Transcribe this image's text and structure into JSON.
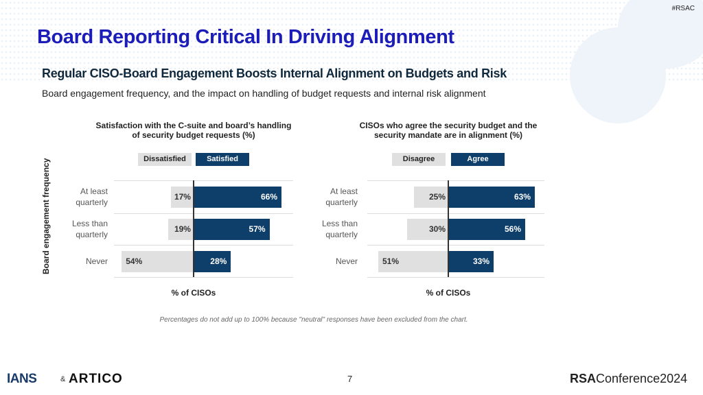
{
  "header": {
    "title": "Board Reporting Critical In Driving Alignment",
    "hashtag": "#RSAC",
    "subtitle": "Regular CISO-Board Engagement Boosts Internal Alignment on Budgets and Risk",
    "description": "Board engagement frequency, and the impact on handling of budget requests and internal risk alignment"
  },
  "colors": {
    "title": "#1c1cb8",
    "negative": "#e0e0e0",
    "positive": "#0e3f6b"
  },
  "chart_data": [
    {
      "type": "bar",
      "orientation": "horizontal-diverging",
      "title_line1": "Satisfaction with the C-suite and board’s handling",
      "title_line2": "of security budget requests (%)",
      "ylabel": "Board engagement frequency",
      "xlabel": "% of CISOs",
      "categories": [
        "At least quarterly",
        "Less than quarterly",
        "Never"
      ],
      "category_lines": [
        [
          "At least",
          "quarterly"
        ],
        [
          "Less than",
          "quarterly"
        ],
        [
          "Never",
          ""
        ]
      ],
      "series": [
        {
          "name": "Dissatisfied",
          "values": [
            17,
            19,
            54
          ],
          "labels": [
            "17%",
            "19%",
            "54%"
          ]
        },
        {
          "name": "Satisfied",
          "values": [
            66,
            57,
            28
          ],
          "labels": [
            "66%",
            "57%",
            "28%"
          ]
        }
      ],
      "legend": "top"
    },
    {
      "type": "bar",
      "orientation": "horizontal-diverging",
      "title_line1": "CISOs who agree the security budget and the",
      "title_line2": "security mandate are in alignment (%)",
      "xlabel": "% of CISOs",
      "categories": [
        "At least quarterly",
        "Less than quarterly",
        "Never"
      ],
      "category_lines": [
        [
          "At least",
          "quarterly"
        ],
        [
          "Less than",
          "quarterly"
        ],
        [
          "Never",
          ""
        ]
      ],
      "series": [
        {
          "name": "Disagree",
          "values": [
            25,
            30,
            51
          ],
          "labels": [
            "25%",
            "30%",
            "51%"
          ]
        },
        {
          "name": "Agree",
          "values": [
            63,
            56,
            33
          ],
          "labels": [
            "63%",
            "56%",
            "33%"
          ]
        }
      ],
      "legend": "top"
    }
  ],
  "footnote": "Percentages do not add up to 100% because \"neutral\" responses have been excluded from the chart.",
  "footer": {
    "page": "7",
    "logo_ians": "IANS",
    "amp": "&",
    "logo_artico": "ARTICO",
    "rsac_bold": "RSA",
    "rsac_rest": "Conference",
    "rsac_year": "2024"
  }
}
